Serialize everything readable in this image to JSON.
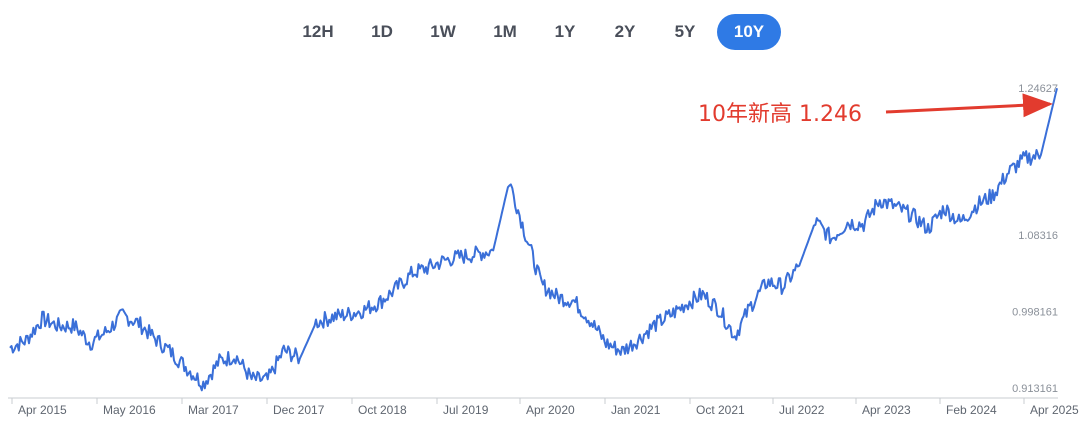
{
  "tabs": [
    {
      "label": "12H",
      "active": false
    },
    {
      "label": "1D",
      "active": false
    },
    {
      "label": "1W",
      "active": false
    },
    {
      "label": "1M",
      "active": false
    },
    {
      "label": "1Y",
      "active": false
    },
    {
      "label": "2Y",
      "active": false
    },
    {
      "label": "5Y",
      "active": false
    },
    {
      "label": "10Y",
      "active": true
    }
  ],
  "colors": {
    "line": "#3a6fd8",
    "accent_tab": "#2f7ae5",
    "annotation": "#e23b2e"
  },
  "chart_data": {
    "type": "line",
    "title": "",
    "xlabel": "",
    "ylabel": "",
    "x_tick_labels": [
      "Apr 2015",
      "May 2016",
      "Mar 2017",
      "Dec 2017",
      "Oct 2018",
      "Jul 2019",
      "Apr 2020",
      "Jan 2021",
      "Oct 2021",
      "Jul 2022",
      "Apr 2023",
      "Feb 2024",
      "Apr 2025"
    ],
    "y_tick_labels": [
      "1.24627",
      "1.08316",
      "0.998161",
      "0.913161"
    ],
    "y_tick_values": [
      1.24627,
      1.08316,
      0.998161,
      0.913161
    ],
    "ylim": [
      0.913161,
      1.24627
    ],
    "grid": false,
    "annotation": {
      "text": "10年新高 1.246",
      "x": "Jul 2025",
      "y": 1.246
    },
    "series": [
      {
        "x": [
          "Mar 2015",
          "May 2015",
          "Jul 2015",
          "Sep 2015",
          "Nov 2015",
          "Jan 2016",
          "Mar 2016",
          "May 2016",
          "Jul 2016",
          "Sep 2016",
          "Nov 2016",
          "Jan 2017",
          "Mar 2017",
          "May 2017",
          "Jul 2017",
          "Sep 2017",
          "Nov 2017",
          "Jan 2018",
          "Mar 2018",
          "May 2018",
          "Jul 2018",
          "Sep 2018",
          "Nov 2018",
          "Jan 2019",
          "Mar 2019",
          "May 2019",
          "Jul 2019",
          "Sep 2019",
          "Nov 2019",
          "Jan 2020",
          "Feb 2020",
          "Mar 2020",
          "Apr 2020",
          "Jun 2020",
          "Aug 2020",
          "Oct 2020",
          "Dec 2020",
          "Feb 2021",
          "Apr 2021",
          "Jun 2021",
          "Aug 2021",
          "Oct 2021",
          "Dec 2021",
          "Feb 2022",
          "Apr 2022",
          "Jun 2022",
          "Aug 2022",
          "Oct 2022",
          "Dec 2022",
          "Feb 2023",
          "Apr 2023",
          "Jun 2023",
          "Aug 2023",
          "Oct 2023",
          "Dec 2023",
          "Feb 2024",
          "Apr 2024",
          "Jun 2024",
          "Aug 2024",
          "Oct 2024",
          "Dec 2024",
          "Feb 2025",
          "Apr 2025",
          "Jun 2025",
          "Jul 2025",
          "Jul 2025 "
        ],
        "values": [
          0.958,
          0.966,
          0.99,
          0.982,
          0.982,
          0.963,
          0.976,
          0.994,
          0.985,
          0.968,
          0.953,
          0.935,
          0.918,
          0.943,
          0.949,
          0.923,
          0.922,
          0.955,
          0.946,
          0.986,
          0.992,
          0.995,
          1.0,
          1.009,
          1.024,
          1.041,
          1.047,
          1.055,
          1.059,
          1.062,
          1.066,
          1.143,
          1.084,
          1.028,
          1.014,
          1.01,
          0.989,
          0.963,
          0.954,
          0.967,
          0.983,
          0.994,
          1.007,
          1.017,
          1.001,
          0.971,
          1.005,
          1.031,
          1.026,
          1.049,
          1.098,
          1.079,
          1.097,
          1.095,
          1.122,
          1.114,
          1.105,
          1.09,
          1.113,
          1.097,
          1.116,
          1.127,
          1.153,
          1.168,
          1.172,
          1.246
        ]
      }
    ]
  }
}
